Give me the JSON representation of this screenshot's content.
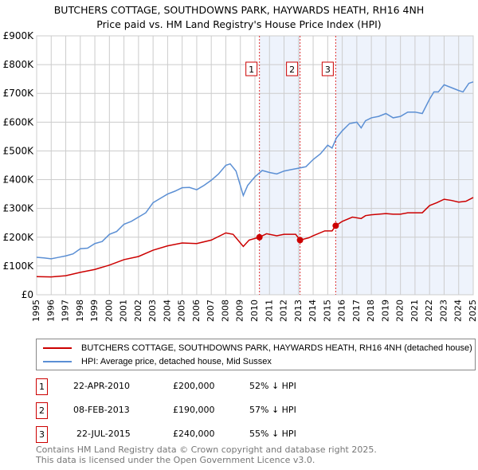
{
  "chart_data": {
    "type": "line",
    "title": "BUTCHERS COTTAGE, SOUTHDOWNS PARK, HAYWARDS HEATH, RH16 4NH",
    "subtitle": "Price paid vs. HM Land Registry's House Price Index (HPI)",
    "xlim": [
      1995,
      2025
    ],
    "ylim": [
      0,
      900000
    ],
    "yticks": [
      {
        "v": 0,
        "label": "£0"
      },
      {
        "v": 100000,
        "label": "£100K"
      },
      {
        "v": 200000,
        "label": "£200K"
      },
      {
        "v": 300000,
        "label": "£300K"
      },
      {
        "v": 400000,
        "label": "£400K"
      },
      {
        "v": 500000,
        "label": "£500K"
      },
      {
        "v": 600000,
        "label": "£600K"
      },
      {
        "v": 700000,
        "label": "£700K"
      },
      {
        "v": 800000,
        "label": "£800K"
      },
      {
        "v": 900000,
        "label": "£900K"
      }
    ],
    "xticks": [
      "1995",
      "1996",
      "1997",
      "1998",
      "1999",
      "2000",
      "2001",
      "2002",
      "2003",
      "2004",
      "2005",
      "2006",
      "2007",
      "2008",
      "2009",
      "2010",
      "2011",
      "2012",
      "2013",
      "2014",
      "2015",
      "2016",
      "2017",
      "2018",
      "2019",
      "2020",
      "2021",
      "2022",
      "2023",
      "2024",
      "2025"
    ],
    "grid": true,
    "series": [
      {
        "name": "BUTCHERS COTTAGE, SOUTHDOWNS PARK, HAYWARDS HEATH, RH16 4NH (detached house)",
        "color": "#cc0000",
        "x": [
          1995,
          1996,
          1997,
          1998,
          1999,
          2000,
          2001,
          2002,
          2003,
          2004,
          2005,
          2006,
          2007,
          2008,
          2008.5,
          2009.2,
          2009.6,
          2010.3,
          2010.8,
          2011.5,
          2012,
          2012.8,
          2013.1,
          2013.7,
          2014,
          2014.8,
          2015.3,
          2015.55,
          2016,
          2016.7,
          2017.3,
          2017.6,
          2018,
          2019,
          2019.5,
          2020,
          2020.5,
          2021,
          2021.5,
          2022,
          2022.5,
          2023,
          2023.5,
          2024,
          2024.5,
          2025
        ],
        "y": [
          63000,
          62000,
          66000,
          78000,
          88000,
          103000,
          122000,
          133000,
          155000,
          170000,
          180000,
          178000,
          190000,
          215000,
          210000,
          168000,
          190000,
          200000,
          212000,
          205000,
          210000,
          210000,
          190000,
          198000,
          205000,
          222000,
          222000,
          240000,
          255000,
          270000,
          265000,
          275000,
          278000,
          282000,
          280000,
          280000,
          285000,
          285000,
          285000,
          310000,
          320000,
          332000,
          328000,
          322000,
          325000,
          338000
        ]
      },
      {
        "name": "HPI: Average price, detached house, Mid Sussex",
        "color": "#5b8fd4",
        "x": [
          1995,
          1995.5,
          1996,
          1996.5,
          1997,
          1997.5,
          1998,
          1998.5,
          1999,
          1999.5,
          2000,
          2000.5,
          2001,
          2001.5,
          2002,
          2002.5,
          2003,
          2003.5,
          2004,
          2004.5,
          2005,
          2005.5,
          2006,
          2006.5,
          2007,
          2007.5,
          2008,
          2008.3,
          2008.7,
          2009.2,
          2009.5,
          2010,
          2010.5,
          2011,
          2011.5,
          2012,
          2012.5,
          2013,
          2013.5,
          2014,
          2014.5,
          2015,
          2015.3,
          2015.6,
          2016,
          2016.5,
          2017,
          2017.3,
          2017.6,
          2018,
          2018.5,
          2019,
          2019.5,
          2020,
          2020.5,
          2021,
          2021.5,
          2022,
          2022.3,
          2022.6,
          2023,
          2023.5,
          2024,
          2024.3,
          2024.7,
          2025
        ],
        "y": [
          130000,
          128000,
          125000,
          130000,
          135000,
          142000,
          160000,
          162000,
          178000,
          185000,
          210000,
          220000,
          245000,
          255000,
          270000,
          285000,
          320000,
          335000,
          350000,
          360000,
          372000,
          373000,
          365000,
          380000,
          398000,
          420000,
          450000,
          455000,
          430000,
          345000,
          380000,
          410000,
          432000,
          425000,
          420000,
          430000,
          435000,
          440000,
          445000,
          470000,
          490000,
          520000,
          510000,
          545000,
          570000,
          595000,
          600000,
          580000,
          605000,
          615000,
          620000,
          630000,
          615000,
          620000,
          635000,
          635000,
          630000,
          680000,
          705000,
          705000,
          730000,
          720000,
          710000,
          705000,
          735000,
          740000
        ]
      }
    ],
    "sales": [
      {
        "num": "1",
        "x": 2010.31,
        "price": 200000,
        "date": "22-APR-2010",
        "price_label": "£200,000",
        "hpi": "52% ↓ HPI"
      },
      {
        "num": "2",
        "x": 2013.1,
        "price": 190000,
        "date": "08-FEB-2013",
        "price_label": "£190,000",
        "hpi": "57% ↓ HPI"
      },
      {
        "num": "3",
        "x": 2015.55,
        "price": 240000,
        "date": "22-JUL-2015",
        "price_label": "£240,000",
        "hpi": "55% ↓ HPI"
      }
    ],
    "shaded": [
      [
        2010.31,
        2013.1
      ],
      [
        2015.55,
        2025
      ]
    ]
  },
  "footer": {
    "line1": "Contains HM Land Registry data © Crown copyright and database right 2025.",
    "line2": "This data is licensed under the Open Government Licence v3.0."
  }
}
